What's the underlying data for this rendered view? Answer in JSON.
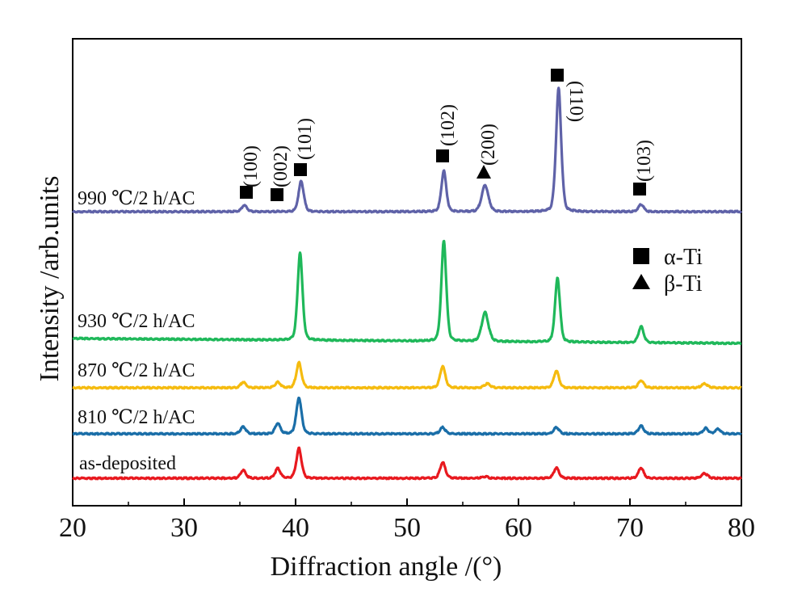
{
  "chart_data": {
    "type": "line",
    "title": "",
    "xlabel": "Diffraction angle /(°)",
    "ylabel": "Intensity /arb.units",
    "xlim": [
      20,
      80
    ],
    "xticks": [
      20,
      30,
      40,
      50,
      60,
      70,
      80
    ],
    "grid": false,
    "legend": {
      "position": "right",
      "entries": [
        {
          "marker": "square",
          "label": "α-Ti"
        },
        {
          "marker": "triangle",
          "label": "β-Ti"
        }
      ]
    },
    "series": [
      {
        "name": "as-deposited",
        "label": "as-deposited",
        "color": "#e8191f",
        "offset": 0,
        "baseline_slope": 0,
        "peaks": [
          {
            "x": 35.3,
            "h": 10,
            "w": 0.35
          },
          {
            "x": 38.4,
            "h": 12,
            "w": 0.35
          },
          {
            "x": 40.3,
            "h": 37,
            "w": 0.35
          },
          {
            "x": 53.2,
            "h": 20,
            "w": 0.35
          },
          {
            "x": 57.0,
            "h": 2,
            "w": 0.4
          },
          {
            "x": 63.4,
            "h": 13,
            "w": 0.35
          },
          {
            "x": 71.0,
            "h": 13,
            "w": 0.35
          },
          {
            "x": 76.7,
            "h": 6,
            "w": 0.4
          }
        ]
      },
      {
        "name": "810 °C/2 h/AC",
        "label": "810 ℃/2 h/AC",
        "color": "#1a6ea8",
        "offset": 55,
        "baseline_slope": 0,
        "peaks": [
          {
            "x": 35.3,
            "h": 9,
            "w": 0.35
          },
          {
            "x": 38.4,
            "h": 13,
            "w": 0.35
          },
          {
            "x": 40.3,
            "h": 45,
            "w": 0.35
          },
          {
            "x": 53.2,
            "h": 8,
            "w": 0.35
          },
          {
            "x": 63.4,
            "h": 8,
            "w": 0.35
          },
          {
            "x": 71.0,
            "h": 10,
            "w": 0.35
          },
          {
            "x": 76.8,
            "h": 7,
            "w": 0.35
          },
          {
            "x": 77.9,
            "h": 6,
            "w": 0.35
          }
        ]
      },
      {
        "name": "870 °C/2 h/AC",
        "label": "870 ℃/2 h/AC",
        "color": "#f5bb0f",
        "offset": 112,
        "baseline_slope": 0,
        "peaks": [
          {
            "x": 35.3,
            "h": 7,
            "w": 0.35
          },
          {
            "x": 38.4,
            "h": 7,
            "w": 0.35
          },
          {
            "x": 40.3,
            "h": 31,
            "w": 0.35
          },
          {
            "x": 53.2,
            "h": 27,
            "w": 0.35
          },
          {
            "x": 57.2,
            "h": 5,
            "w": 0.4
          },
          {
            "x": 63.4,
            "h": 21,
            "w": 0.35
          },
          {
            "x": 71.0,
            "h": 9,
            "w": 0.35
          },
          {
            "x": 76.7,
            "h": 5,
            "w": 0.4
          }
        ]
      },
      {
        "name": "930 °C/2 h/AC",
        "label": "930 ℃/2 h/AC",
        "color": "#1fb85a",
        "offset": 173,
        "baseline_slope": -0.1,
        "peaks": [
          {
            "x": 40.4,
            "h": 109,
            "w": 0.33
          },
          {
            "x": 53.3,
            "h": 125,
            "w": 0.33
          },
          {
            "x": 57.0,
            "h": 36,
            "w": 0.45
          },
          {
            "x": 63.5,
            "h": 80,
            "w": 0.33
          },
          {
            "x": 71.0,
            "h": 20,
            "w": 0.35
          }
        ]
      },
      {
        "name": "990 °C/2 h/AC",
        "label": "990 ℃/2 h/AC",
        "color": "#5f62a8",
        "offset": 330,
        "baseline_slope": 0,
        "peaks": [
          {
            "x": 35.4,
            "h": 8,
            "w": 0.35
          },
          {
            "x": 40.5,
            "h": 38,
            "w": 0.35
          },
          {
            "x": 53.3,
            "h": 51,
            "w": 0.33
          },
          {
            "x": 57.0,
            "h": 33,
            "w": 0.45
          },
          {
            "x": 63.6,
            "h": 153,
            "w": 0.35
          },
          {
            "x": 71.0,
            "h": 9,
            "w": 0.35
          }
        ]
      }
    ],
    "peak_annotations": [
      {
        "label": "(100)",
        "x": 35.5,
        "phase": "α-Ti",
        "marker": "square"
      },
      {
        "label": "(002)",
        "x": 38.4,
        "phase": "α-Ti",
        "marker": "square"
      },
      {
        "label": "(101)",
        "x": 40.4,
        "phase": "α-Ti",
        "marker": "square"
      },
      {
        "label": "(102)",
        "x": 53.2,
        "phase": "α-Ti",
        "marker": "square"
      },
      {
        "label": "(200)",
        "x": 57.0,
        "phase": "β-Ti",
        "marker": "triangle"
      },
      {
        "label": "(110)",
        "x": 63.5,
        "phase": "α-Ti",
        "marker": "square"
      },
      {
        "label": "(103)",
        "x": 71.0,
        "phase": "α-Ti",
        "marker": "square"
      }
    ]
  }
}
